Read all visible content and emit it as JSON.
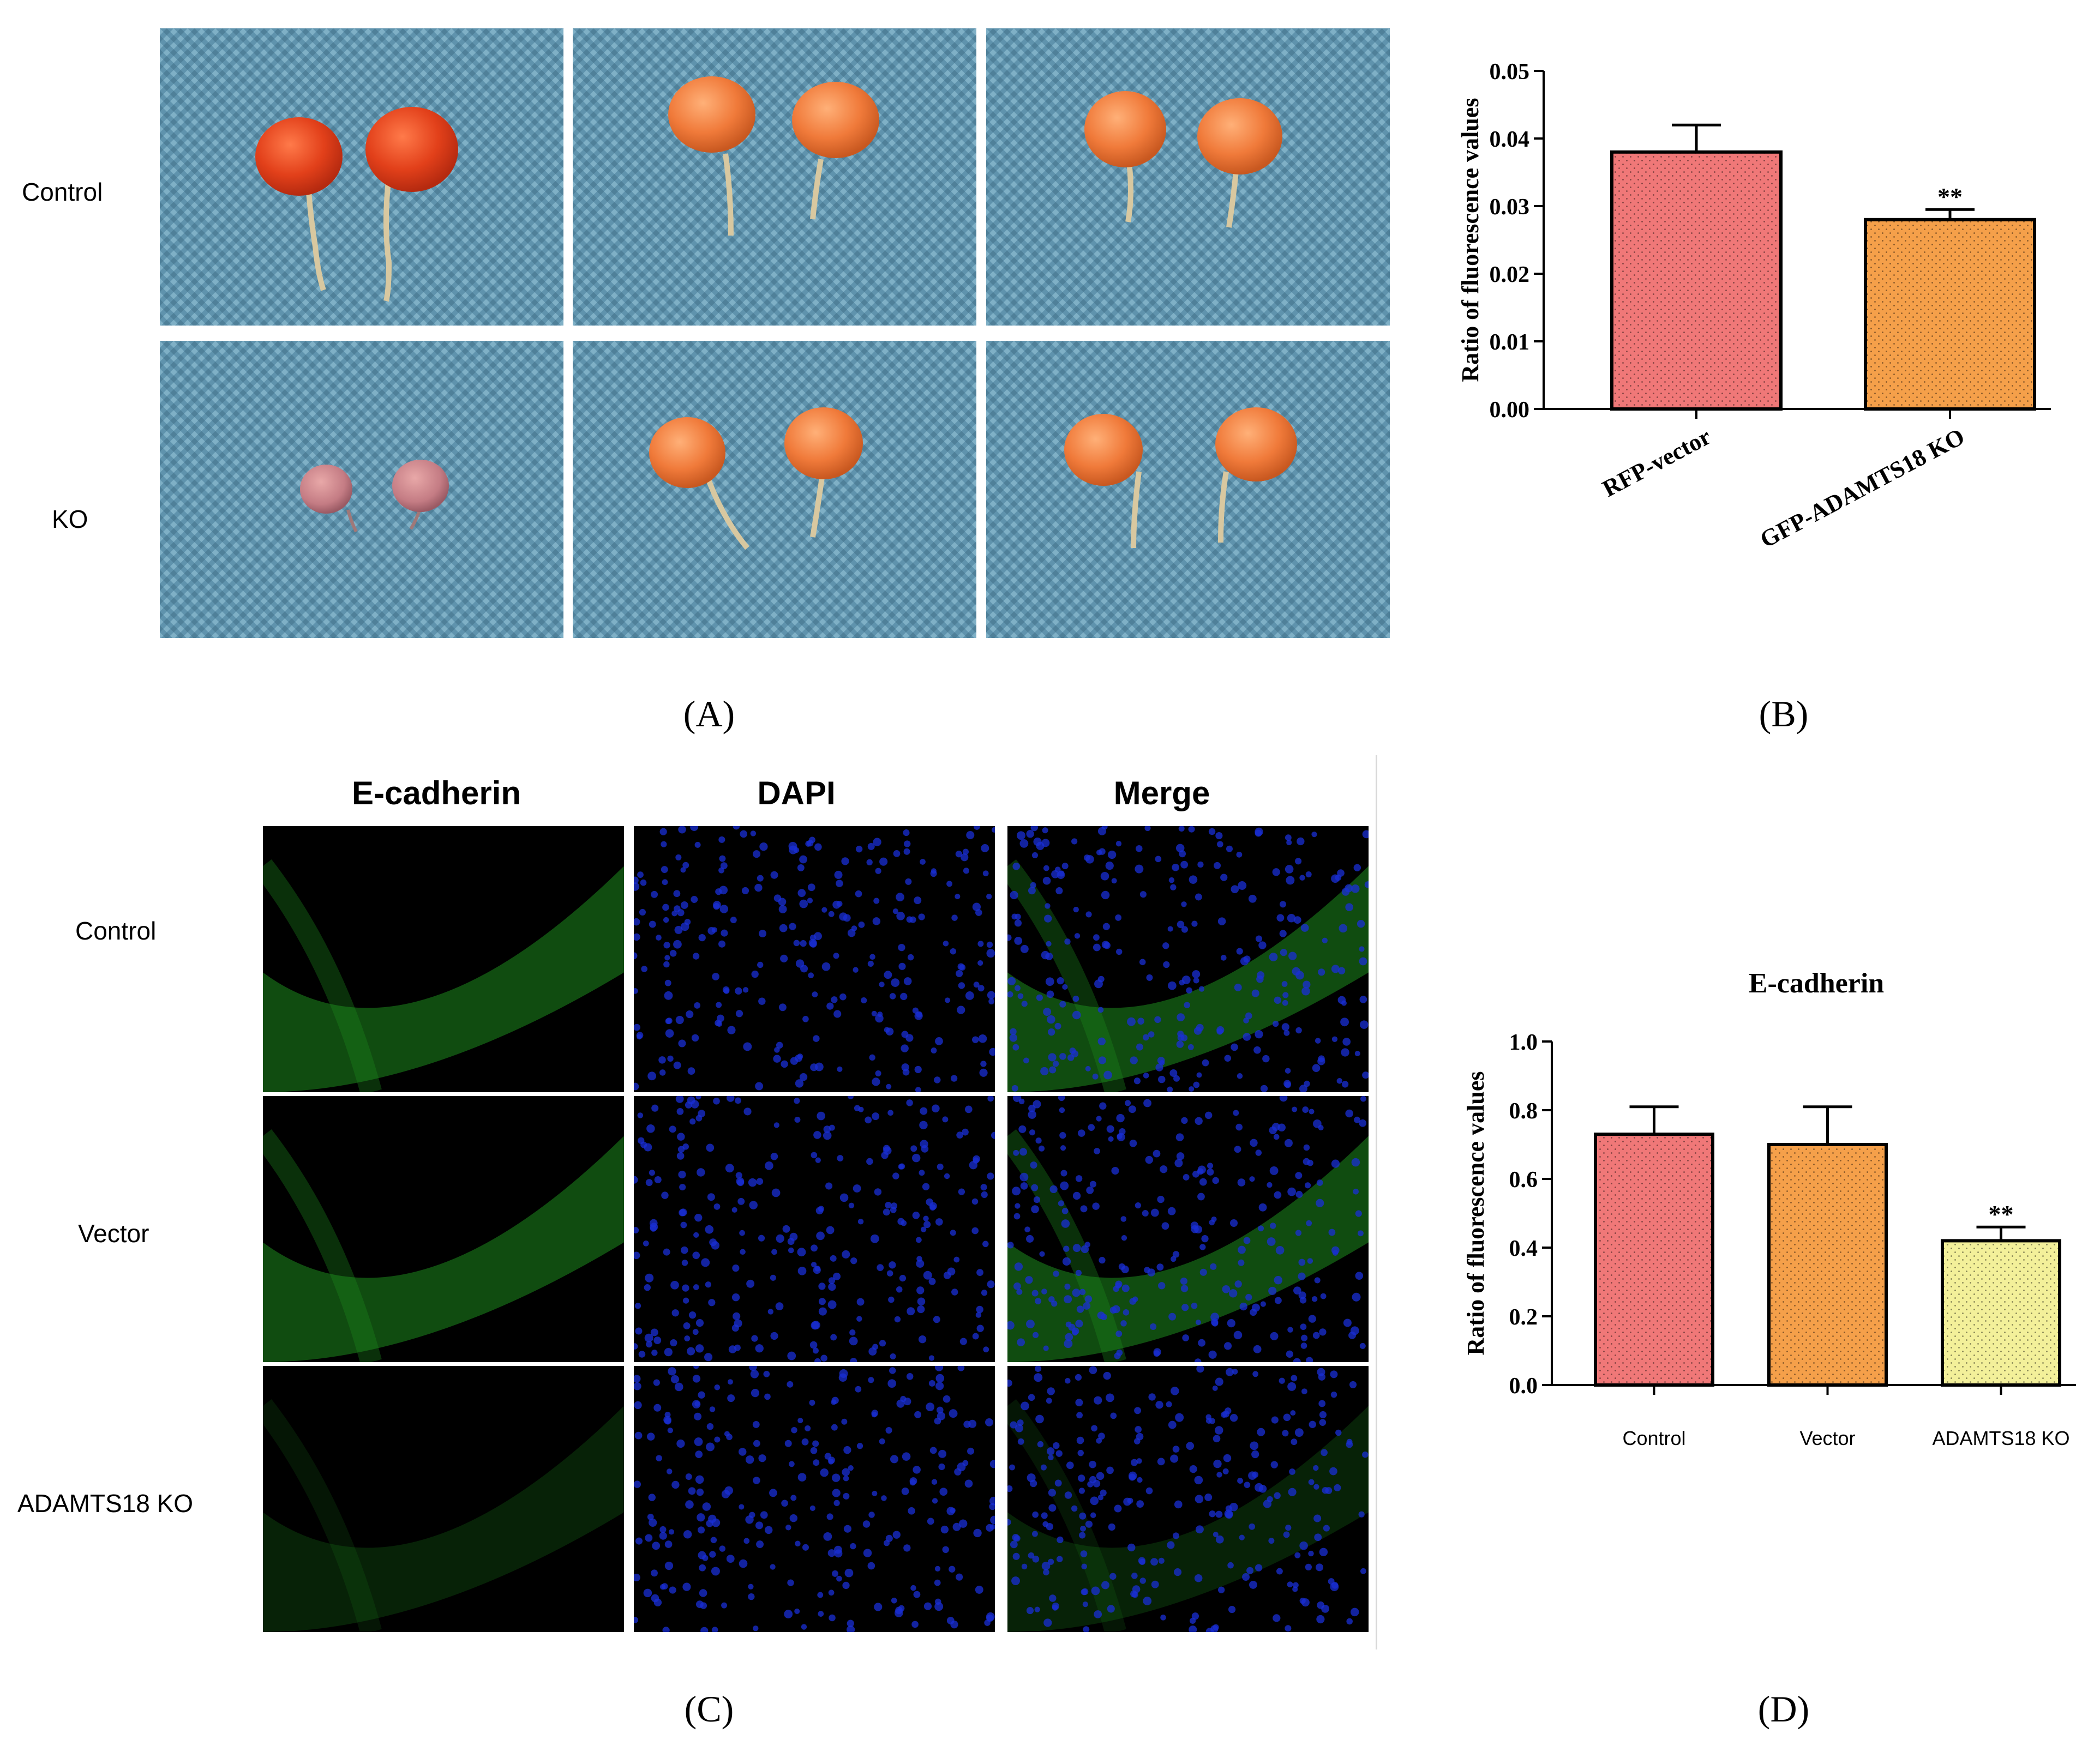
{
  "panel_a": {
    "row_labels": [
      "Control",
      "KO"
    ],
    "caption": "(A)"
  },
  "panel_b": {
    "caption": "(B)"
  },
  "panel_c": {
    "column_headers": [
      "E-cadherin",
      "DAPI",
      "Merge"
    ],
    "row_labels": [
      "Control",
      "Vector",
      "ADAMTS18 KO"
    ],
    "caption": "(C)"
  },
  "panel_d": {
    "caption": "(D)"
  },
  "colors": {
    "bar_red": "#f07878",
    "bar_orange": "#f5a04a",
    "bar_yellow": "#f3f09a",
    "egfp_green": "#1e8a1e",
    "dapi_blue": "#1a2fd6",
    "mat_blue": "#5b8fa8"
  },
  "chart_data": [
    {
      "type": "bar",
      "title": "",
      "xlabel": "",
      "ylabel": "Ratio of fluorescence values",
      "categories": [
        "RFP-vector",
        "GFP-ADAMTS18 KO"
      ],
      "values": [
        0.038,
        0.028
      ],
      "error": [
        0.004,
        0.0015
      ],
      "significance": [
        "",
        "**"
      ],
      "ylim": [
        0,
        0.05
      ],
      "yticks": [
        "0.00",
        "0.01",
        "0.02",
        "0.03",
        "0.04",
        "0.05"
      ],
      "grid": false
    },
    {
      "type": "bar",
      "title": "E-cadherin",
      "xlabel": "",
      "ylabel": "Ratio of fluorescence values",
      "categories": [
        "Control",
        "Vector",
        "ADAMTS18 KO"
      ],
      "values": [
        0.73,
        0.7,
        0.42
      ],
      "error": [
        0.08,
        0.11,
        0.04
      ],
      "significance": [
        "",
        "",
        "**"
      ],
      "ylim": [
        0,
        1.0
      ],
      "yticks": [
        "0.0",
        "0.2",
        "0.4",
        "0.6",
        "0.8",
        "1.0"
      ],
      "grid": false
    }
  ]
}
